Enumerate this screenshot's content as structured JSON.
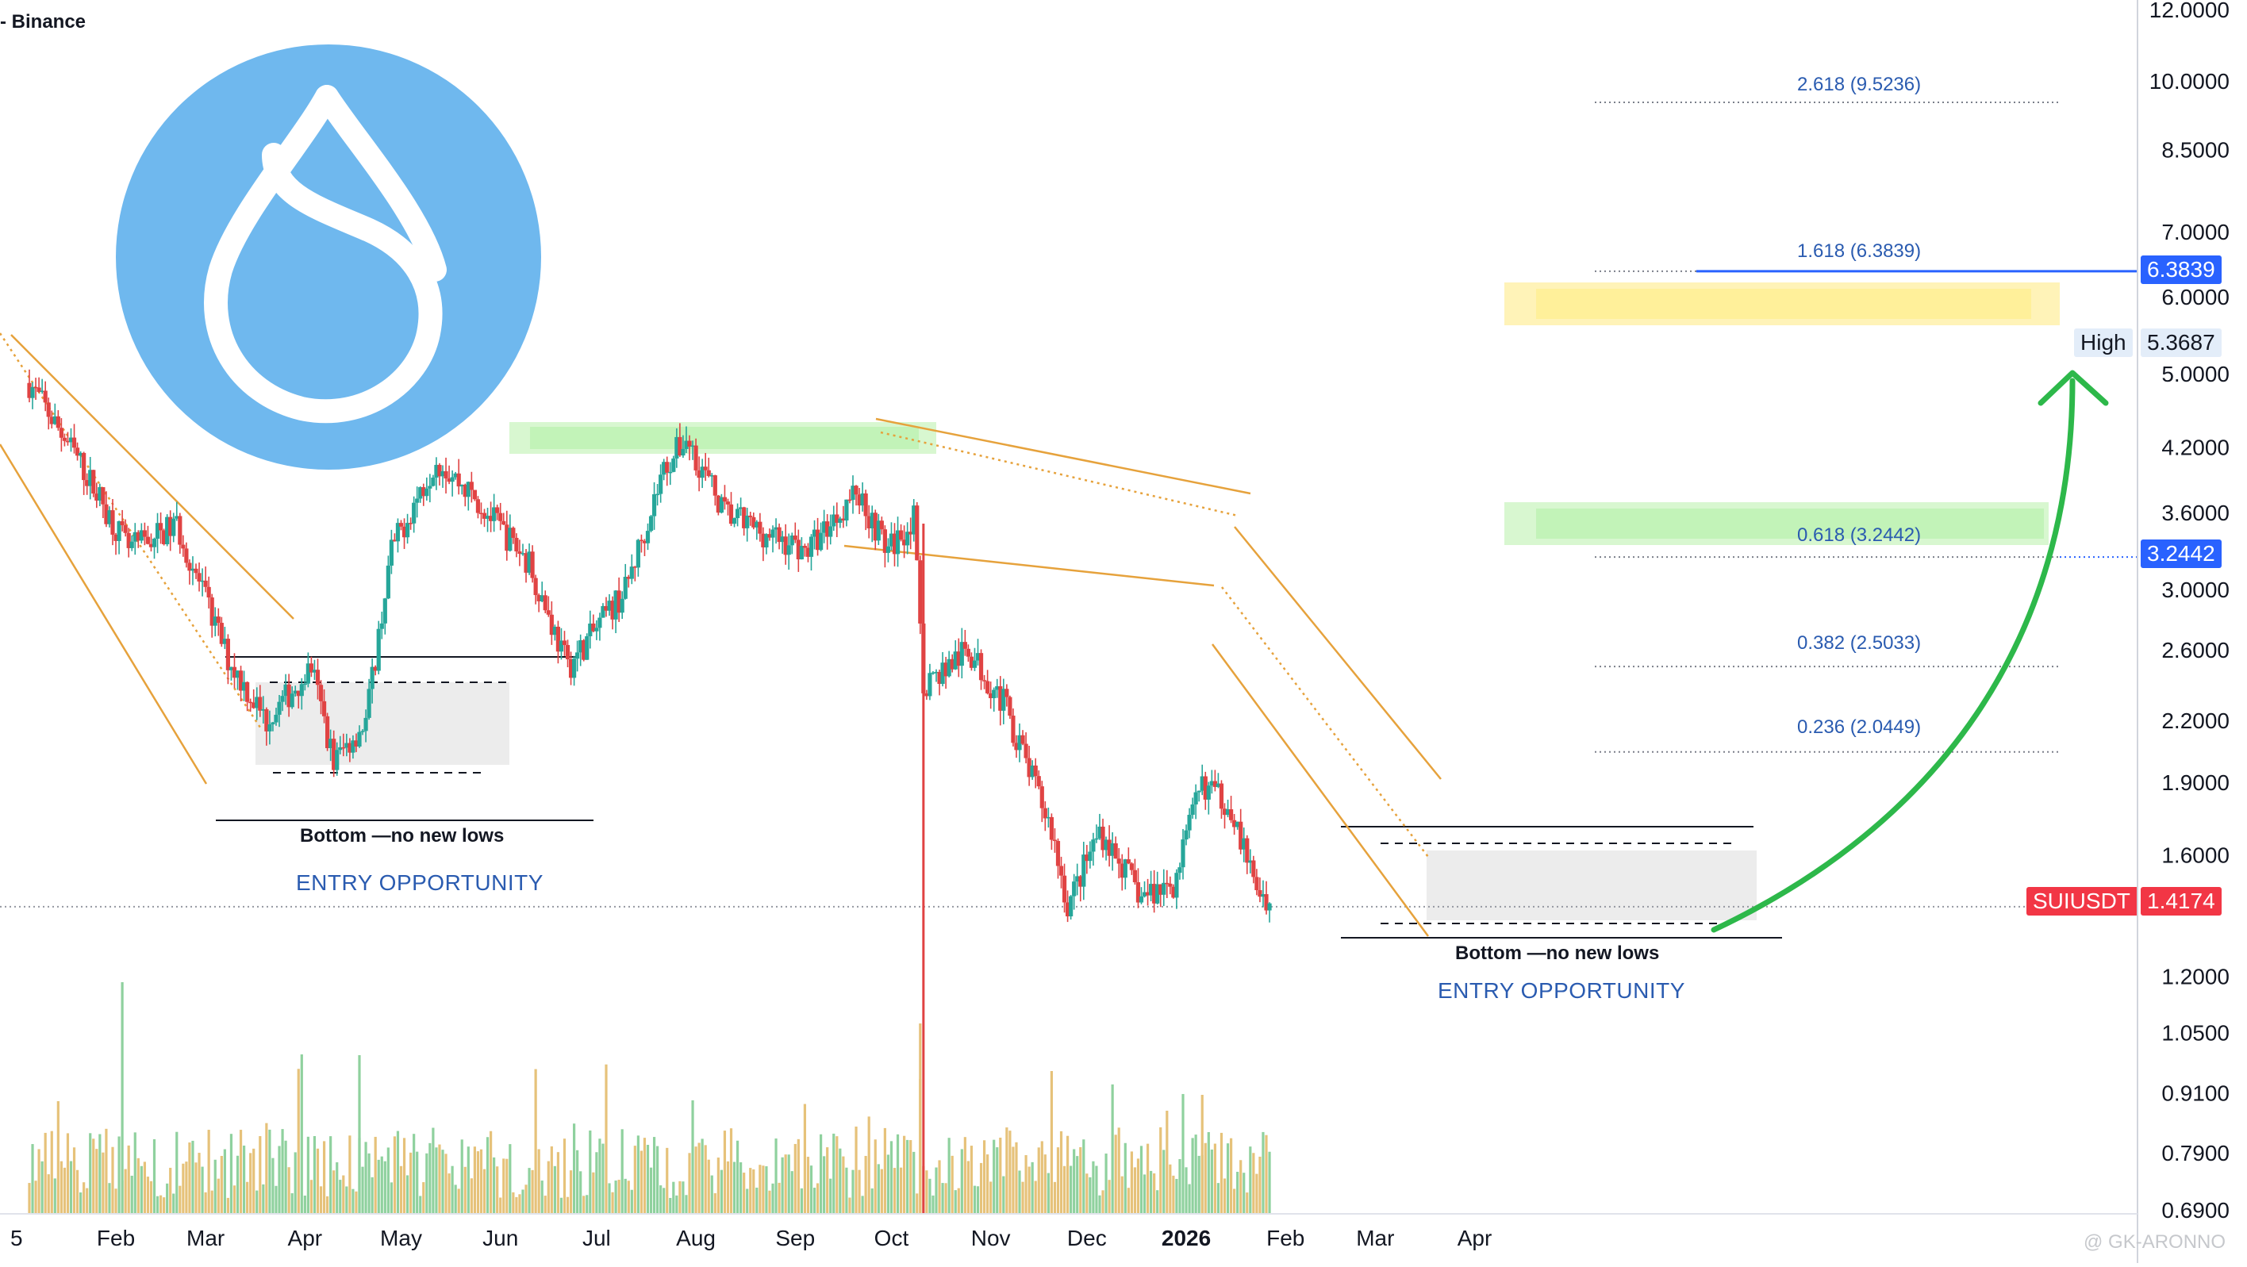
{
  "header": {
    "exchange_label": "- Binance"
  },
  "logo": {
    "name": "sui-logo",
    "color": "#6fb8ee"
  },
  "colors": {
    "up": "#26a69a",
    "down": "#e04343",
    "vol_up": "#8fd19e",
    "vol_down": "#e6c27a",
    "channel": "#e6a23c",
    "arrow": "#2db84a",
    "fib": "#2a5bb0",
    "tag_red": "#f23645",
    "tag_blue": "#2962ff",
    "zone_green": "#c8f5c0",
    "zone_yellow": "#fff3a8"
  },
  "price_axis": {
    "ticks": [
      "12.0000",
      "10.0000",
      "8.5000",
      "7.0000",
      "6.0000",
      "5.0000",
      "4.2000",
      "3.6000",
      "3.0000",
      "2.6000",
      "2.2000",
      "1.9000",
      "1.6000",
      "1.2000",
      "1.0500",
      "0.9100",
      "0.7900",
      "0.6900"
    ],
    "scale": "log"
  },
  "time_axis": {
    "ticks": [
      "5",
      "Feb",
      "Mar",
      "Apr",
      "May",
      "Jun",
      "Jul",
      "Aug",
      "Sep",
      "Oct",
      "Nov",
      "Dec",
      "2026",
      "Feb",
      "Mar",
      "Apr"
    ]
  },
  "fib_levels": [
    {
      "label": "2.618 (9.5236)",
      "price": 9.5236
    },
    {
      "label": "1.618 (6.3839)",
      "price": 6.3839
    },
    {
      "label": "0.618 (3.2442)",
      "price": 3.2442
    },
    {
      "label": "0.382 (2.5033)",
      "price": 2.5033
    },
    {
      "label": "0.236 (2.0449)",
      "price": 2.0449
    }
  ],
  "tags": {
    "fib_1618": "6.3839",
    "fib_0618": "3.2442",
    "high_label": "High",
    "high_value": "5.3687",
    "symbol": "SUIUSDT",
    "last_price": "1.4174"
  },
  "annotations": {
    "bottom_left": "Bottom —no new lows",
    "entry_left": "ENTRY OPPORTUNITY",
    "bottom_right": "Bottom —no new lows",
    "entry_right": "ENTRY OPPORTUNITY"
  },
  "watermark": "@ GK-ARONNO",
  "chart_data": {
    "type": "candlestick",
    "symbol": "SUIUSDT",
    "exchange": "Binance",
    "y_scale": "log",
    "ylim": [
      0.69,
      12.0
    ],
    "x_range": [
      "Jan 2025",
      "Apr 2026"
    ],
    "last_price": 1.4174,
    "fibonacci": [
      {
        "ratio": 2.618,
        "price": 9.5236
      },
      {
        "ratio": 1.618,
        "price": 6.3839
      },
      {
        "ratio": 0.618,
        "price": 3.2442
      },
      {
        "ratio": 0.382,
        "price": 2.5033
      },
      {
        "ratio": 0.236,
        "price": 2.0449
      }
    ],
    "high": 5.3687,
    "price_path": [
      {
        "date": "2025-01-05",
        "price": 4.9
      },
      {
        "date": "2025-01-20",
        "price": 4.1
      },
      {
        "date": "2025-02-05",
        "price": 3.3
      },
      {
        "date": "2025-02-20",
        "price": 3.5
      },
      {
        "date": "2025-03-08",
        "price": 2.55
      },
      {
        "date": "2025-03-20",
        "price": 2.2
      },
      {
        "date": "2025-04-03",
        "price": 2.5
      },
      {
        "date": "2025-04-10",
        "price": 2.0
      },
      {
        "date": "2025-04-20",
        "price": 2.2
      },
      {
        "date": "2025-04-28",
        "price": 3.3
      },
      {
        "date": "2025-05-12",
        "price": 4.1
      },
      {
        "date": "2025-05-25",
        "price": 3.7
      },
      {
        "date": "2025-06-10",
        "price": 3.2
      },
      {
        "date": "2025-06-22",
        "price": 2.5
      },
      {
        "date": "2025-07-10",
        "price": 3.0
      },
      {
        "date": "2025-07-22",
        "price": 4.0
      },
      {
        "date": "2025-07-29",
        "price": 4.3
      },
      {
        "date": "2025-08-10",
        "price": 3.6
      },
      {
        "date": "2025-08-25",
        "price": 3.4
      },
      {
        "date": "2025-09-05",
        "price": 3.3
      },
      {
        "date": "2025-09-20",
        "price": 3.8
      },
      {
        "date": "2025-09-30",
        "price": 3.3
      },
      {
        "date": "2025-10-08",
        "price": 3.55
      },
      {
        "date": "2025-10-11",
        "price": 2.4
      },
      {
        "date": "2025-10-25",
        "price": 2.6
      },
      {
        "date": "2025-11-05",
        "price": 2.3
      },
      {
        "date": "2025-11-20",
        "price": 1.7
      },
      {
        "date": "2025-11-25",
        "price": 1.42
      },
      {
        "date": "2025-12-05",
        "price": 1.7
      },
      {
        "date": "2025-12-18",
        "price": 1.45
      },
      {
        "date": "2025-12-28",
        "price": 1.5
      },
      {
        "date": "2026-01-06",
        "price": 1.9
      },
      {
        "date": "2026-01-15",
        "price": 1.8
      },
      {
        "date": "2026-01-22",
        "price": 1.5
      },
      {
        "date": "2026-01-28",
        "price": 1.42
      }
    ]
  }
}
